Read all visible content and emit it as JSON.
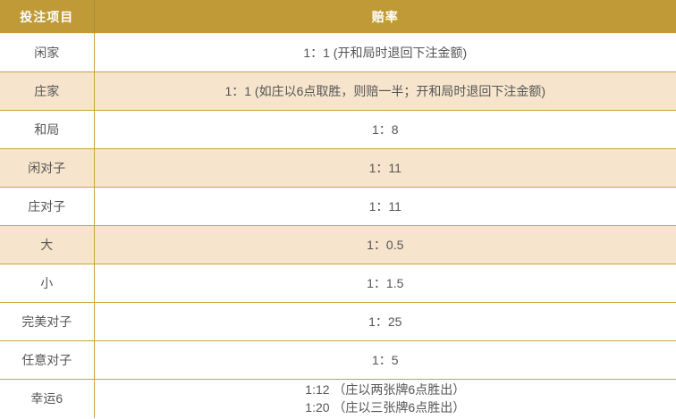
{
  "table": {
    "columns": [
      {
        "label": "投注项目"
      },
      {
        "label": "赔率"
      }
    ],
    "rows": [
      {
        "item": "闲家",
        "odds_lines": [
          "1：1 (开和局时退回下注金额)"
        ],
        "highlight": false
      },
      {
        "item": "庄家",
        "odds_lines": [
          "1：1 (如庄以6点取胜，则赔一半；开和局时退回下注金额)"
        ],
        "highlight": true
      },
      {
        "item": "和局",
        "odds_lines": [
          "1：8"
        ],
        "highlight": false
      },
      {
        "item": "闲对子",
        "odds_lines": [
          "1：11"
        ],
        "highlight": true
      },
      {
        "item": "庄对子",
        "odds_lines": [
          "1：11"
        ],
        "highlight": false
      },
      {
        "item": "大",
        "odds_lines": [
          "1：0.5"
        ],
        "highlight": true
      },
      {
        "item": "小",
        "odds_lines": [
          "1：1.5"
        ],
        "highlight": false
      },
      {
        "item": "完美对子",
        "odds_lines": [
          "1：25"
        ],
        "highlight": false
      },
      {
        "item": "任意对子",
        "odds_lines": [
          "1：5"
        ],
        "highlight": false
      },
      {
        "item": "幸运6",
        "odds_lines": [
          "1:12 （庄以两张牌6点胜出）",
          "1:20 （庄以三张牌6点胜出）"
        ],
        "highlight": false
      }
    ],
    "colors": {
      "header_bg": "#BF9A37",
      "header_text": "#FFFFFF",
      "header_divider": "#B08E31",
      "row_border": "#C9A43D",
      "row_highlight_bg": "#F6E4CC",
      "body_text": "#555555",
      "row_bg": "#FFFFFF"
    }
  }
}
